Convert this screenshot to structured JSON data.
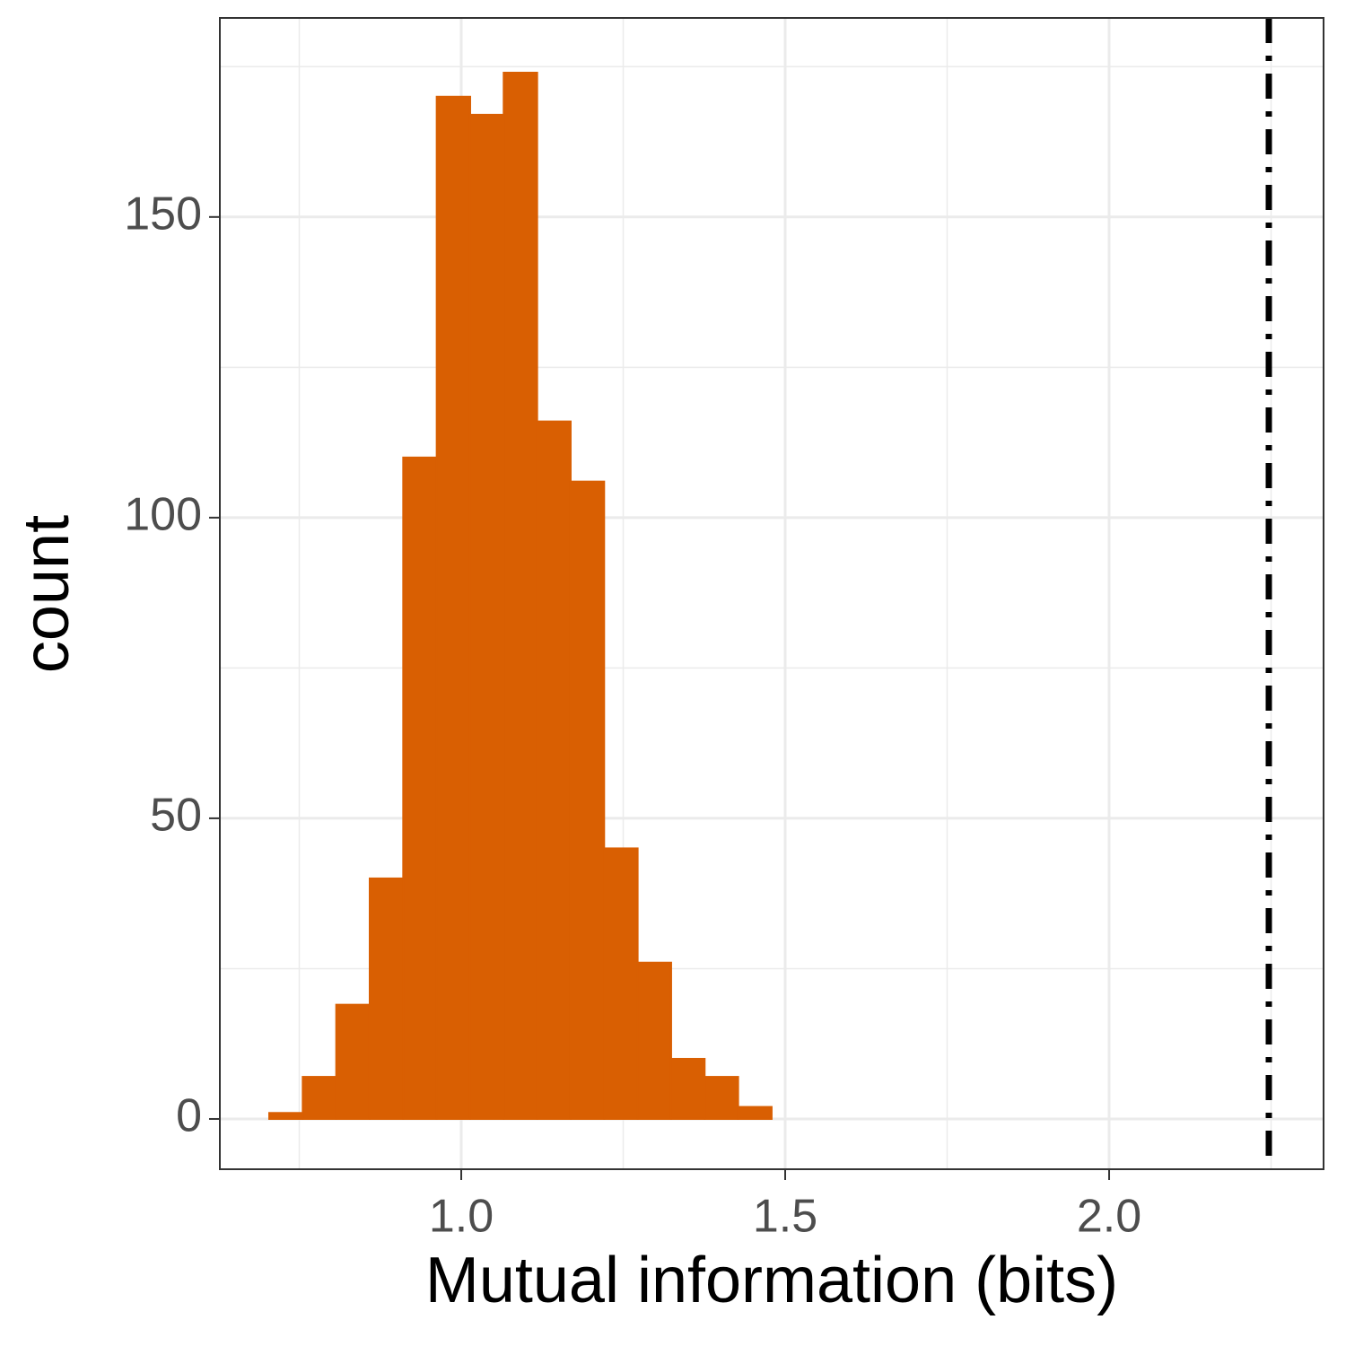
{
  "chart_data": {
    "type": "histogram",
    "xlabel": "Mutual information (bits)",
    "ylabel": "count",
    "bins": [
      0.7036,
      0.7553,
      0.807,
      0.8587,
      0.9104,
      0.9621,
      1.0138,
      1.0655,
      1.1172,
      1.1689,
      1.2206,
      1.2723,
      1.324,
      1.3757,
      1.4274,
      1.4791,
      1.5308,
      1.5825,
      1.6342,
      1.6859,
      1.7376,
      1.7893,
      1.841,
      1.8927,
      1.9444,
      1.9961,
      2.0478,
      2.0995,
      2.1512,
      2.2029,
      2.2546
    ],
    "values": [
      1,
      7,
      19,
      40,
      110,
      170,
      167,
      174,
      116,
      106,
      45,
      26,
      10,
      7,
      2,
      0,
      0,
      0,
      0,
      0,
      0,
      0,
      0,
      0,
      0,
      0,
      0,
      0,
      0,
      0
    ],
    "color": "#d95f02",
    "vline": 2.2465,
    "xlim": [
      0.6274,
      2.331
    ],
    "ylim": [
      -8.36,
      183.1
    ],
    "xticks": [
      {
        "value": 1,
        "label": "1.0"
      },
      {
        "value": 1.5,
        "label": "1.5"
      },
      {
        "value": 2,
        "label": "2.0"
      }
    ],
    "yticks": [
      0,
      50,
      100,
      150
    ],
    "x_minor_ticks": [
      0.75,
      1.25,
      1.75,
      2.25
    ],
    "y_minor_ticks": [
      25,
      75,
      125,
      175
    ],
    "grid": true
  }
}
